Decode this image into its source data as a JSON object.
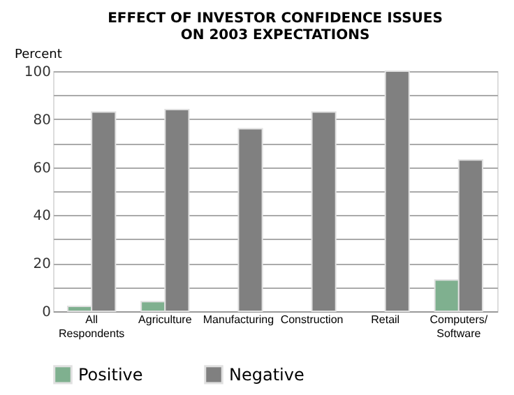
{
  "chart_data": {
    "type": "bar",
    "title": "EFFECT OF INVESTOR CONFIDENCE ISSUES ON 2003 EXPECTATIONS",
    "ylabel": "Percent",
    "categories": [
      "All Respondents",
      "Agriculture",
      "Manufacturing",
      "Construction",
      "Retail",
      "Computers/ Software"
    ],
    "series": [
      {
        "name": "Positive",
        "color": "#7fb08f",
        "values": [
          2,
          4,
          null,
          null,
          null,
          13
        ]
      },
      {
        "name": "Negative",
        "color": "#808080",
        "values": [
          83,
          84,
          76,
          83,
          100,
          63
        ]
      }
    ],
    "ylim": [
      0,
      100
    ],
    "yticks": [
      0,
      {
        "value": 10,
        "label": null
      },
      20,
      {
        "value": 30,
        "label": null
      },
      40,
      {
        "value": 50,
        "label": null
      },
      60,
      {
        "value": 70,
        "label": null
      },
      80,
      {
        "value": 90,
        "label": null
      },
      100
    ],
    "grid": "y",
    "legend": "bottom"
  }
}
